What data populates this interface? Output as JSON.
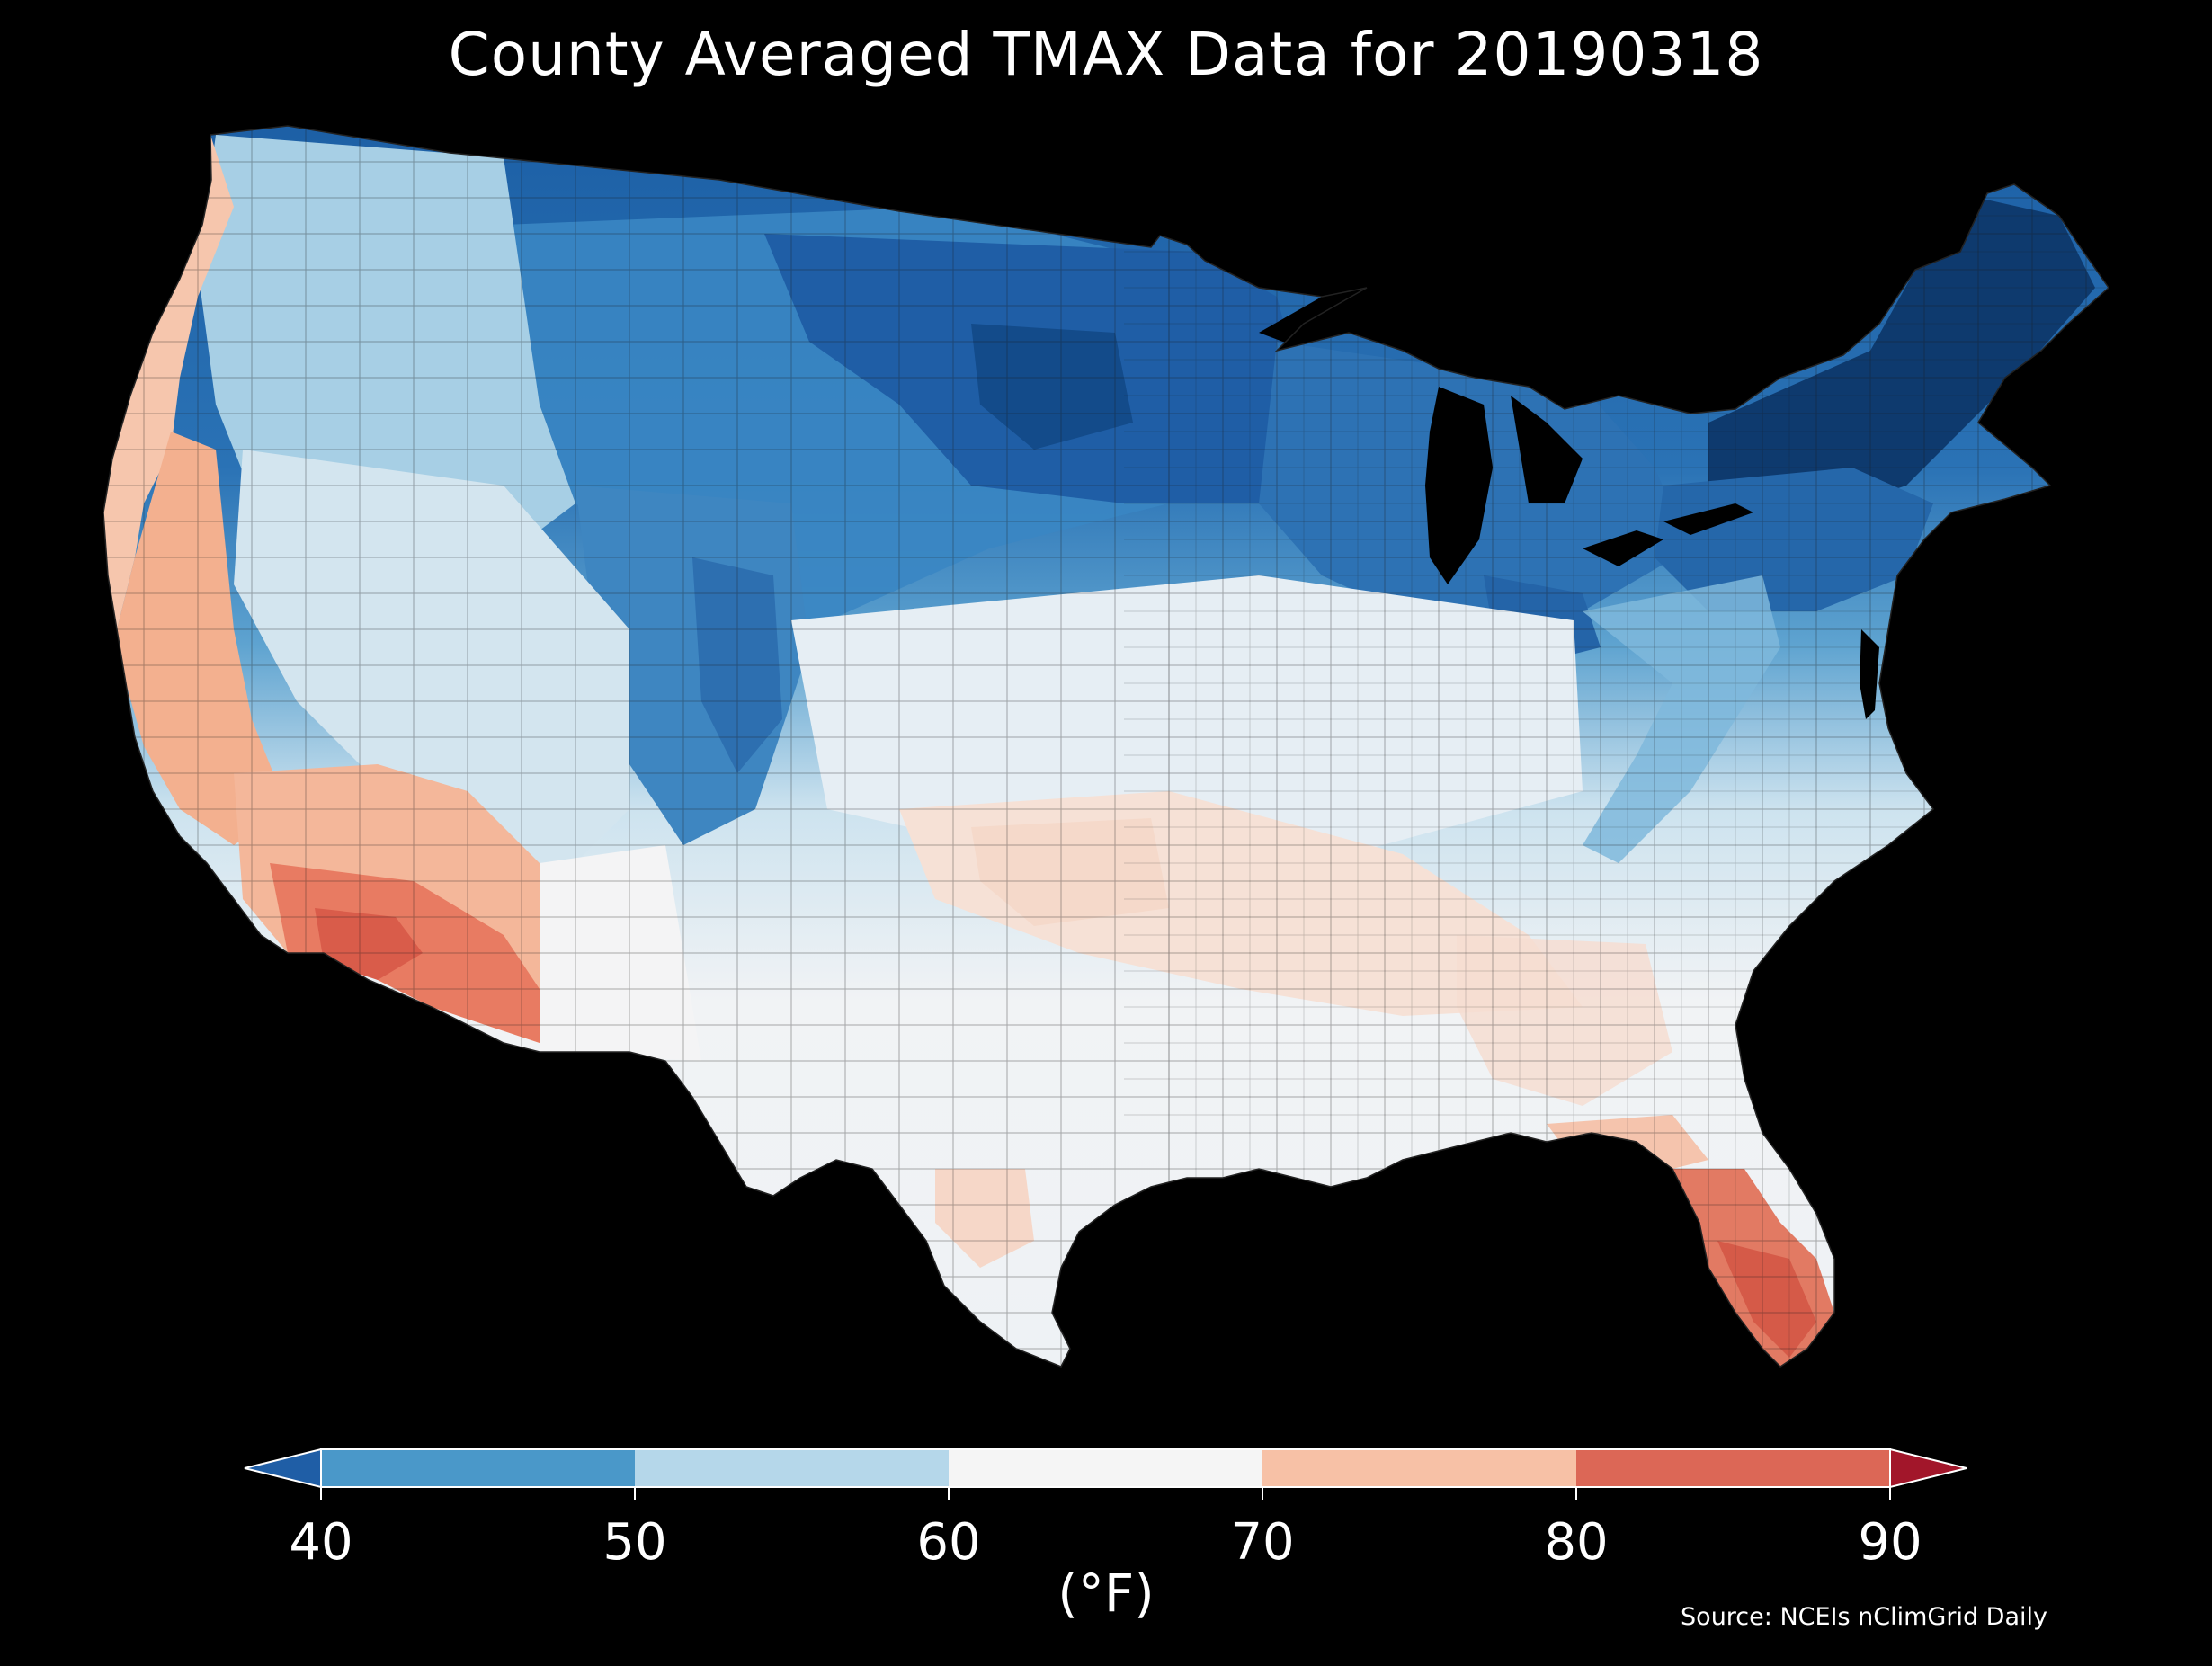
{
  "title": "County Averaged TMAX Data for 20190318",
  "unit_label": "(°F)",
  "source": "Source: NCEIs nClimGrid Daily",
  "colorbar": {
    "ticks": [
      "40",
      "50",
      "60",
      "70",
      "80",
      "90"
    ],
    "bins": [
      {
        "range": "<40",
        "color": "#1f5ea6"
      },
      {
        "range": "40-50",
        "color": "#4a98c9"
      },
      {
        "range": "50-60",
        "color": "#b5d7ea"
      },
      {
        "range": "60-70",
        "color": "#f5f5f5"
      },
      {
        "range": "70-80",
        "color": "#f7c1a6"
      },
      {
        "range": "80-90",
        "color": "#dc6756"
      },
      {
        "range": ">90",
        "color": "#a2162a"
      }
    ]
  },
  "map_regions": [
    {
      "name": "new-england",
      "temp_band": "<40",
      "color": "#0a3263"
    },
    {
      "name": "northern-plains",
      "temp_band": "<40",
      "color": "#17518f"
    },
    {
      "name": "great-lakes",
      "temp_band": "40-50",
      "color": "#2b70b2"
    },
    {
      "name": "northern-rockies",
      "temp_band": "40-50",
      "color": "#3b85c2"
    },
    {
      "name": "pacific-northwest-interior",
      "temp_band": "50-60",
      "color": "#a9cfe4"
    },
    {
      "name": "central-plains",
      "temp_band": "60-70",
      "color": "#e9eff4"
    },
    {
      "name": "southern-plains",
      "temp_band": "60-70",
      "color": "#f7e3da"
    },
    {
      "name": "southeast",
      "temp_band": "60-70",
      "color": "#f1f3f5"
    },
    {
      "name": "california-coast",
      "temp_band": "70-80",
      "color": "#f5b497"
    },
    {
      "name": "southwest-desert",
      "temp_band": "80-90",
      "color": "#dc6a55"
    },
    {
      "name": "south-florida",
      "temp_band": "80-90",
      "color": "#de6a57"
    }
  ]
}
